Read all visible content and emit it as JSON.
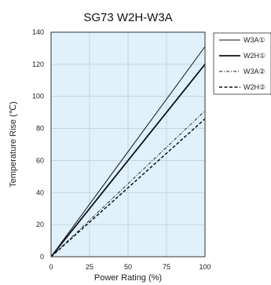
{
  "chart_data": {
    "type": "line",
    "title": "SG73 W2H-W3A",
    "xlabel": "Power Rating (%)",
    "ylabel": "Temperature Rise (℃)",
    "xlim": [
      0,
      100
    ],
    "ylim": [
      0,
      140
    ],
    "x_ticks": [
      "0",
      "25",
      "50",
      "75",
      "100"
    ],
    "y_ticks": [
      "0",
      "20",
      "40",
      "60",
      "80",
      "100",
      "120",
      "140"
    ],
    "grid": true,
    "legend_position": "right",
    "plot_background": "#dff1fb",
    "grid_color": "#b8cfdc",
    "series": [
      {
        "name": "W3A①",
        "style": "solid-thin",
        "x": [
          0,
          100
        ],
        "y": [
          0,
          131
        ]
      },
      {
        "name": "W2H①",
        "style": "solid-thick",
        "x": [
          0,
          100
        ],
        "y": [
          0,
          120
        ]
      },
      {
        "name": "W3A②",
        "style": "dash-dot",
        "x": [
          0,
          100
        ],
        "y": [
          0,
          91
        ]
      },
      {
        "name": "W2H②",
        "style": "dashed",
        "x": [
          0,
          100
        ],
        "y": [
          0,
          86
        ]
      }
    ]
  }
}
